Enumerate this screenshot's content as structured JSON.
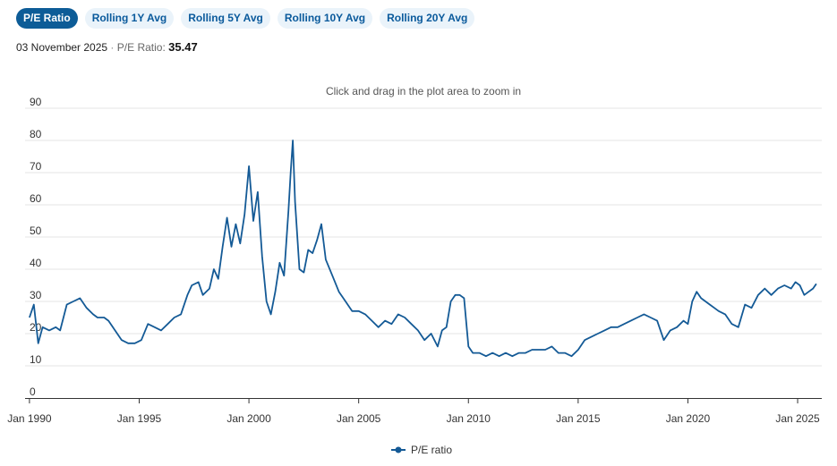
{
  "tabs": [
    {
      "label": "P/E Ratio",
      "active": true
    },
    {
      "label": "Rolling 1Y Avg",
      "active": false
    },
    {
      "label": "Rolling 5Y Avg",
      "active": false
    },
    {
      "label": "Rolling 10Y Avg",
      "active": false
    },
    {
      "label": "Rolling 20Y Avg",
      "active": false
    }
  ],
  "info": {
    "date": "03 November 2025",
    "separator": "·",
    "label": "P/E Ratio:",
    "value": "35.47"
  },
  "colors": {
    "accent": "#0d5c97",
    "line": "#145a96",
    "grid": "#e6e6e6"
  },
  "chart_data": {
    "type": "line",
    "zoom_hint": "Click and drag in the plot area to zoom in",
    "title": "",
    "xlabel": "",
    "ylabel": "",
    "xlim": [
      1989.8,
      2026.1
    ],
    "ylim": [
      0,
      90
    ],
    "yticks": [
      0,
      10,
      20,
      30,
      40,
      50,
      60,
      70,
      80,
      90
    ],
    "xticks": [
      {
        "value": 1990,
        "label": "Jan 1990"
      },
      {
        "value": 1995,
        "label": "Jan 1995"
      },
      {
        "value": 2000,
        "label": "Jan 2000"
      },
      {
        "value": 2005,
        "label": "Jan 2005"
      },
      {
        "value": 2010,
        "label": "Jan 2010"
      },
      {
        "value": 2015,
        "label": "Jan 2015"
      },
      {
        "value": 2020,
        "label": "Jan 2020"
      },
      {
        "value": 2025,
        "label": "Jan 2025"
      }
    ],
    "legend": "bottom-center",
    "series": [
      {
        "name": "P/E ratio",
        "x": [
          1990.0,
          1990.2,
          1990.4,
          1990.6,
          1990.9,
          1991.2,
          1991.4,
          1991.7,
          1992.0,
          1992.3,
          1992.6,
          1992.9,
          1993.1,
          1993.4,
          1993.6,
          1993.9,
          1994.2,
          1994.5,
          1994.8,
          1995.1,
          1995.4,
          1995.7,
          1996.0,
          1996.3,
          1996.6,
          1996.9,
          1997.2,
          1997.4,
          1997.7,
          1997.9,
          1998.2,
          1998.4,
          1998.6,
          1998.8,
          1999.0,
          1999.2,
          1999.4,
          1999.6,
          1999.8,
          2000.0,
          2000.2,
          2000.4,
          2000.6,
          2000.8,
          2001.0,
          2001.2,
          2001.4,
          2001.6,
          2001.8,
          2001.9,
          2002.0,
          2002.1,
          2002.3,
          2002.5,
          2002.7,
          2002.9,
          2003.1,
          2003.3,
          2003.5,
          2003.8,
          2004.1,
          2004.4,
          2004.7,
          2005.0,
          2005.3,
          2005.6,
          2005.9,
          2006.2,
          2006.5,
          2006.8,
          2007.1,
          2007.4,
          2007.7,
          2008.0,
          2008.3,
          2008.6,
          2008.8,
          2009.0,
          2009.2,
          2009.4,
          2009.6,
          2009.8,
          2010.0,
          2010.2,
          2010.5,
          2010.8,
          2011.1,
          2011.4,
          2011.7,
          2012.0,
          2012.3,
          2012.6,
          2012.9,
          2013.2,
          2013.5,
          2013.8,
          2014.1,
          2014.4,
          2014.7,
          2015.0,
          2015.3,
          2015.6,
          2015.9,
          2016.2,
          2016.5,
          2016.8,
          2017.1,
          2017.4,
          2017.7,
          2018.0,
          2018.3,
          2018.6,
          2018.9,
          2019.2,
          2019.5,
          2019.8,
          2020.0,
          2020.2,
          2020.4,
          2020.6,
          2020.8,
          2021.0,
          2021.2,
          2021.4,
          2021.7,
          2022.0,
          2022.3,
          2022.6,
          2022.9,
          2023.2,
          2023.5,
          2023.8,
          2024.1,
          2024.4,
          2024.7,
          2024.9,
          2025.1,
          2025.3,
          2025.5,
          2025.7,
          2025.85
        ],
        "y": [
          25,
          29,
          17,
          22,
          21,
          22,
          21,
          29,
          30,
          31,
          28,
          26,
          25,
          25,
          24,
          21,
          18,
          17,
          17,
          18,
          23,
          22,
          21,
          23,
          25,
          26,
          32,
          35,
          36,
          32,
          34,
          40,
          37,
          47,
          56,
          47,
          54,
          48,
          57,
          72,
          55,
          64,
          44,
          30,
          26,
          33,
          42,
          38,
          58,
          70,
          80,
          61,
          40,
          39,
          46,
          45,
          49,
          54,
          43,
          38,
          33,
          30,
          27,
          27,
          26,
          24,
          22,
          24,
          23,
          26,
          25,
          23,
          21,
          18,
          20,
          16,
          21,
          22,
          30,
          32,
          32,
          31,
          16,
          14,
          14,
          13,
          14,
          13,
          14,
          13,
          14,
          14,
          15,
          15,
          15,
          16,
          14,
          14,
          13,
          15,
          18,
          19,
          20,
          21,
          22,
          22,
          23,
          24,
          25,
          26,
          25,
          24,
          18,
          21,
          22,
          24,
          23,
          30,
          33,
          31,
          30,
          29,
          28,
          27,
          26,
          23,
          22,
          29,
          28,
          32,
          34,
          32,
          34,
          35,
          34,
          36,
          35,
          32,
          33,
          34,
          35.47
        ]
      }
    ]
  }
}
